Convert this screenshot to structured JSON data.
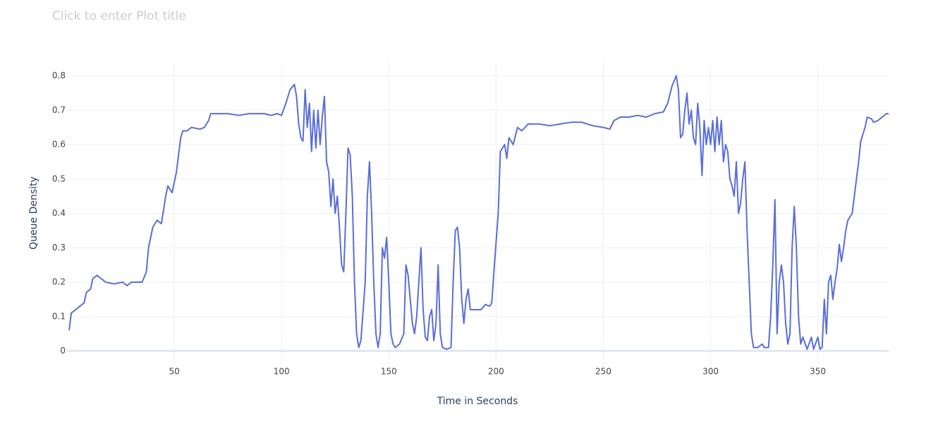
{
  "chart_data": {
    "type": "line",
    "title": "Click to enter Plot title",
    "x_label": "Time in Seconds",
    "y_label": "Queue Density",
    "xlim": [
      0,
      383
    ],
    "ylim": [
      -0.04,
      0.84
    ],
    "xticks": [
      50,
      100,
      150,
      200,
      250,
      300,
      350
    ],
    "yticks": [
      0,
      0.1,
      0.2,
      0.3,
      0.4,
      0.5,
      0.6,
      0.7,
      0.8
    ],
    "grid": true,
    "x": [
      1,
      2,
      4,
      6,
      8,
      9,
      11,
      12,
      14,
      16,
      18,
      22,
      26,
      28,
      30,
      35,
      37,
      38,
      40,
      42,
      44,
      46,
      47,
      49,
      51,
      53,
      54,
      56,
      58,
      62,
      64,
      66,
      67,
      70,
      75,
      80,
      85,
      90,
      92,
      95,
      98,
      100,
      102,
      104,
      106,
      107,
      108,
      109,
      110,
      111,
      112,
      113,
      114,
      115,
      116,
      117,
      118,
      119,
      120,
      121,
      122,
      123,
      124,
      125,
      126,
      127,
      128,
      129,
      130,
      131,
      132,
      133,
      134,
      135,
      136,
      137,
      139,
      140,
      141,
      142,
      143,
      144,
      145,
      146,
      147,
      148,
      149,
      150,
      151,
      152,
      153,
      155,
      157,
      158,
      159,
      160,
      161,
      162,
      163,
      164,
      165,
      166,
      167,
      168,
      169,
      170,
      171,
      172,
      173,
      174,
      175,
      177,
      179,
      180,
      181,
      182,
      183,
      184,
      185,
      186,
      187,
      188,
      190,
      193,
      195,
      197,
      198,
      199,
      201,
      202,
      204,
      205,
      206,
      208,
      210,
      212,
      215,
      220,
      225,
      230,
      235,
      240,
      245,
      250,
      253,
      255,
      258,
      262,
      266,
      270,
      274,
      278,
      280,
      282,
      284,
      285,
      286,
      287,
      288,
      289,
      290,
      291,
      292,
      293,
      294,
      295,
      296,
      297,
      298,
      299,
      300,
      301,
      302,
      303,
      304,
      305,
      306,
      307,
      308,
      309,
      310,
      311,
      312,
      313,
      314,
      315,
      316,
      317,
      318,
      319,
      320,
      322,
      324,
      325,
      327,
      328,
      329,
      330,
      331,
      332,
      333,
      334,
      335,
      336,
      337,
      338,
      339,
      340,
      341,
      342,
      343,
      345,
      347,
      348,
      350,
      351,
      352,
      353,
      354,
      355,
      356,
      357,
      358,
      359,
      360,
      361,
      362,
      363,
      364,
      365,
      366,
      367,
      368,
      369,
      370,
      372,
      373,
      375,
      376,
      378,
      380,
      382,
      383
    ],
    "series": [
      {
        "name": "Queue Density",
        "color": "#5a6ed8",
        "values": [
          0.06,
          0.11,
          0.12,
          0.13,
          0.14,
          0.17,
          0.18,
          0.21,
          0.22,
          0.21,
          0.2,
          0.195,
          0.2,
          0.19,
          0.2,
          0.2,
          0.23,
          0.3,
          0.36,
          0.38,
          0.37,
          0.45,
          0.48,
          0.46,
          0.52,
          0.62,
          0.64,
          0.64,
          0.65,
          0.645,
          0.65,
          0.67,
          0.69,
          0.69,
          0.69,
          0.685,
          0.69,
          0.69,
          0.69,
          0.685,
          0.69,
          0.685,
          0.72,
          0.76,
          0.775,
          0.74,
          0.66,
          0.62,
          0.61,
          0.76,
          0.65,
          0.72,
          0.58,
          0.7,
          0.59,
          0.7,
          0.6,
          0.68,
          0.74,
          0.55,
          0.52,
          0.42,
          0.5,
          0.4,
          0.45,
          0.36,
          0.25,
          0.23,
          0.4,
          0.59,
          0.57,
          0.45,
          0.2,
          0.05,
          0.01,
          0.03,
          0.2,
          0.45,
          0.55,
          0.4,
          0.2,
          0.05,
          0.01,
          0.05,
          0.3,
          0.27,
          0.33,
          0.2,
          0.05,
          0.02,
          0.01,
          0.02,
          0.05,
          0.25,
          0.22,
          0.15,
          0.08,
          0.05,
          0.1,
          0.2,
          0.3,
          0.12,
          0.04,
          0.03,
          0.1,
          0.12,
          0.03,
          0.08,
          0.25,
          0.05,
          0.01,
          0.005,
          0.01,
          0.2,
          0.35,
          0.36,
          0.3,
          0.15,
          0.08,
          0.15,
          0.18,
          0.12,
          0.12,
          0.12,
          0.135,
          0.13,
          0.14,
          0.23,
          0.4,
          0.58,
          0.6,
          0.56,
          0.62,
          0.6,
          0.65,
          0.64,
          0.66,
          0.66,
          0.655,
          0.66,
          0.665,
          0.665,
          0.655,
          0.65,
          0.645,
          0.67,
          0.68,
          0.68,
          0.685,
          0.68,
          0.69,
          0.695,
          0.72,
          0.77,
          0.8,
          0.76,
          0.62,
          0.63,
          0.7,
          0.75,
          0.66,
          0.7,
          0.62,
          0.6,
          0.72,
          0.65,
          0.51,
          0.67,
          0.6,
          0.65,
          0.6,
          0.67,
          0.58,
          0.68,
          0.6,
          0.67,
          0.55,
          0.6,
          0.58,
          0.5,
          0.48,
          0.45,
          0.55,
          0.4,
          0.43,
          0.5,
          0.55,
          0.35,
          0.2,
          0.05,
          0.01,
          0.01,
          0.02,
          0.01,
          0.01,
          0.1,
          0.25,
          0.44,
          0.05,
          0.2,
          0.25,
          0.2,
          0.08,
          0.02,
          0.05,
          0.3,
          0.42,
          0.3,
          0.1,
          0.02,
          0.04,
          0.005,
          0.04,
          0.005,
          0.04,
          0.005,
          0.01,
          0.15,
          0.05,
          0.2,
          0.22,
          0.15,
          0.2,
          0.24,
          0.31,
          0.26,
          0.3,
          0.35,
          0.38,
          0.39,
          0.4,
          0.45,
          0.5,
          0.55,
          0.61,
          0.65,
          0.68,
          0.675,
          0.665,
          0.67,
          0.68,
          0.69,
          0.69
        ]
      }
    ]
  }
}
